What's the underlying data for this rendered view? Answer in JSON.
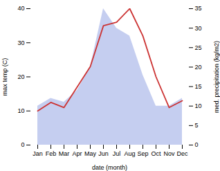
{
  "chart_data": {
    "type": "line",
    "xlabel": "date (month)",
    "ylabel": "max temp (C)",
    "y2label": "med. precipitation (kg/m2)",
    "categories": [
      "Jan",
      "Feb",
      "Mar",
      "Apr",
      "May",
      "Jun",
      "Jul",
      "Aug",
      "Sep",
      "Oct",
      "Nov",
      "Dec"
    ],
    "series": [
      {
        "type": "area",
        "axis": "y2",
        "color": "#c5cef0",
        "values": [
          10,
          12,
          11,
          14,
          20,
          35,
          30,
          28,
          18,
          10,
          10,
          12
        ]
      },
      {
        "type": "line",
        "color": "#cc3333",
        "values": [
          10,
          12.5,
          11,
          17,
          23,
          35,
          36,
          40,
          32,
          20,
          11,
          13
        ]
      }
    ],
    "ylim": [
      0,
      40
    ],
    "yticks": [
      0,
      10,
      20,
      30,
      40
    ],
    "y2lim": [
      0,
      35
    ],
    "y2ticks": [
      0,
      5,
      10,
      15,
      20,
      25,
      30,
      35
    ],
    "grid": false
  }
}
